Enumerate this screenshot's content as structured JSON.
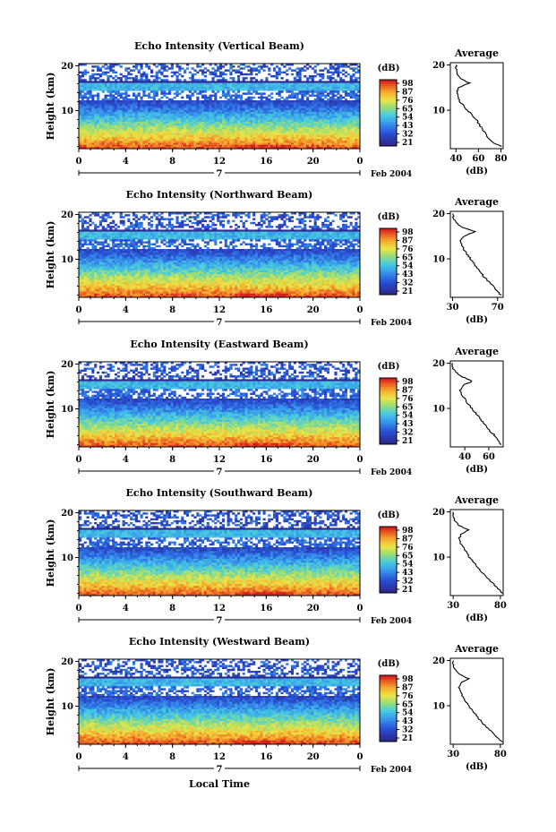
{
  "figure": {
    "xlabel": "Local Time",
    "date_label": "Feb 2004",
    "day_label": "7",
    "colorbar_unit": "(dB)",
    "avg_title": "Average",
    "avg_xlabel": "(dB)"
  },
  "chart_data": [
    {
      "type": "heatmap",
      "title": "Echo Intensity (Vertical Beam)",
      "ylabel": "Height (km)",
      "xticks": [
        "0",
        "4",
        "8",
        "12",
        "16",
        "20",
        "0"
      ],
      "yticks": [
        "10",
        "20"
      ],
      "xlim": [
        0,
        24
      ],
      "ylim": [
        1.5,
        20.5
      ],
      "colorbar": {
        "ticks": [
          "98",
          "87",
          "76",
          "65",
          "54",
          "43",
          "32",
          "21"
        ],
        "range": [
          21,
          98
        ]
      },
      "profile": {
        "title": "Average",
        "xlabel": "(dB)",
        "xticks": [
          "40",
          "60",
          "80"
        ],
        "yticks": [
          "10",
          "20"
        ],
        "xlim": [
          35,
          82
        ],
        "heights": [
          2,
          3,
          4,
          5,
          6,
          7,
          8,
          9,
          10,
          11,
          12,
          13,
          14,
          15,
          16,
          17,
          18,
          19,
          20
        ],
        "values": [
          80,
          72,
          68,
          66,
          63,
          60,
          58,
          54,
          50,
          47,
          43,
          42,
          41,
          42,
          52,
          44,
          41,
          40,
          40
        ]
      }
    },
    {
      "type": "heatmap",
      "title": "Echo Intensity (Northward Beam)",
      "ylabel": "Height (km)",
      "xticks": [
        "0",
        "4",
        "8",
        "12",
        "16",
        "20",
        "0"
      ],
      "yticks": [
        "10",
        "20"
      ],
      "xlim": [
        0,
        24
      ],
      "ylim": [
        1.5,
        20.5
      ],
      "colorbar": {
        "ticks": [
          "98",
          "87",
          "76",
          "65",
          "54",
          "43",
          "32",
          "21"
        ],
        "range": [
          21,
          98
        ]
      },
      "profile": {
        "title": "Average",
        "xlabel": "(dB)",
        "xticks": [
          "30",
          "70"
        ],
        "yticks": [
          "10",
          "20"
        ],
        "xlim": [
          28,
          75
        ],
        "heights": [
          2,
          3,
          4,
          5,
          6,
          7,
          8,
          9,
          10,
          11,
          12,
          13,
          14,
          15,
          16,
          17,
          18,
          19,
          20
        ],
        "values": [
          73,
          69,
          66,
          62,
          58,
          55,
          52,
          49,
          46,
          43,
          40,
          38,
          36,
          40,
          50,
          38,
          33,
          31,
          30
        ]
      }
    },
    {
      "type": "heatmap",
      "title": "Echo Intensity (Eastward Beam)",
      "ylabel": "Height (km)",
      "xticks": [
        "0",
        "4",
        "8",
        "12",
        "16",
        "20",
        "0"
      ],
      "yticks": [
        "10",
        "20"
      ],
      "xlim": [
        0,
        24
      ],
      "ylim": [
        1.5,
        20.5
      ],
      "colorbar": {
        "ticks": [
          "98",
          "87",
          "76",
          "65",
          "54",
          "43",
          "32",
          "21"
        ],
        "range": [
          21,
          98
        ]
      },
      "profile": {
        "title": "Average",
        "xlabel": "(dB)",
        "xticks": [
          "40",
          "60"
        ],
        "yticks": [
          "10",
          "20"
        ],
        "xlim": [
          28,
          72
        ],
        "heights": [
          2,
          3,
          4,
          5,
          6,
          7,
          8,
          9,
          10,
          11,
          12,
          13,
          14,
          15,
          16,
          17,
          18,
          19,
          20
        ],
        "values": [
          70,
          68,
          65,
          61,
          58,
          55,
          52,
          49,
          46,
          43,
          40,
          38,
          36,
          38,
          46,
          38,
          32,
          30,
          30
        ]
      }
    },
    {
      "type": "heatmap",
      "title": "Echo Intensity (Southward Beam)",
      "ylabel": "Height (km)",
      "xticks": [
        "0",
        "4",
        "8",
        "12",
        "16",
        "20",
        "0"
      ],
      "yticks": [
        "10",
        "20"
      ],
      "xlim": [
        0,
        24
      ],
      "ylim": [
        1.5,
        20.5
      ],
      "colorbar": {
        "ticks": [
          "98",
          "87",
          "76",
          "65",
          "54",
          "43",
          "32",
          "21"
        ],
        "range": [
          21,
          98
        ]
      },
      "profile": {
        "title": "Average",
        "xlabel": "(dB)",
        "xticks": [
          "30",
          "80"
        ],
        "yticks": [
          "10",
          "20"
        ],
        "xlim": [
          27,
          83
        ],
        "heights": [
          2,
          3,
          4,
          5,
          6,
          7,
          8,
          9,
          10,
          11,
          12,
          13,
          14,
          15,
          16,
          17,
          18,
          19,
          20
        ],
        "values": [
          82,
          78,
          73,
          68,
          63,
          59,
          55,
          51,
          47,
          44,
          41,
          38,
          36,
          38,
          46,
          36,
          32,
          30,
          30
        ]
      }
    },
    {
      "type": "heatmap",
      "title": "Echo Intensity (Westward Beam)",
      "ylabel": "Height (km)",
      "xticks": [
        "0",
        "4",
        "8",
        "12",
        "16",
        "20",
        "0"
      ],
      "yticks": [
        "10",
        "20"
      ],
      "xlim": [
        0,
        24
      ],
      "ylim": [
        1.5,
        20.5
      ],
      "colorbar": {
        "ticks": [
          "98",
          "87",
          "76",
          "65",
          "54",
          "43",
          "32",
          "21"
        ],
        "range": [
          21,
          98
        ]
      },
      "profile": {
        "title": "Average",
        "xlabel": "(dB)",
        "xticks": [
          "30",
          "80"
        ],
        "yticks": [
          "10",
          "20"
        ],
        "xlim": [
          27,
          83
        ],
        "heights": [
          2,
          3,
          4,
          5,
          6,
          7,
          8,
          9,
          10,
          11,
          12,
          13,
          14,
          15,
          16,
          17,
          18,
          19,
          20
        ],
        "values": [
          82,
          77,
          72,
          67,
          62,
          58,
          54,
          50,
          46,
          43,
          40,
          38,
          36,
          38,
          46,
          37,
          32,
          30,
          30
        ]
      }
    }
  ]
}
